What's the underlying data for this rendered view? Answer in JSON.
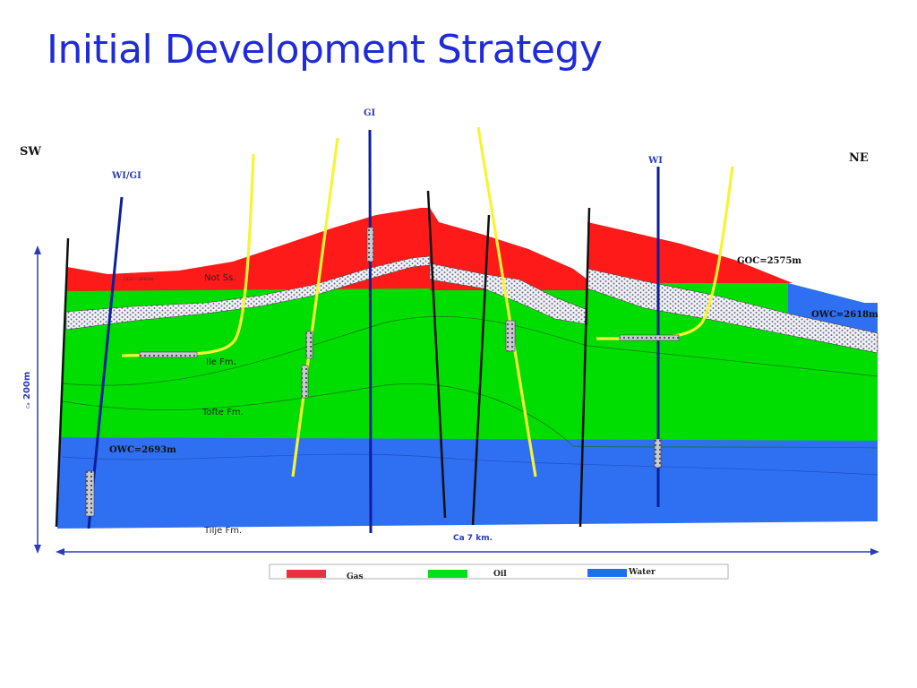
{
  "title": "Initial Development Strategy",
  "directions": {
    "left": "SW",
    "right": "NE"
  },
  "wells": [
    {
      "label": "WI/GI"
    },
    {
      "label": "GI"
    },
    {
      "label": "WI"
    }
  ],
  "contacts": {
    "goc_right": "GOC=2575m",
    "goc_left": "GOC=2693m",
    "owc_right": "OWC=2618m",
    "owc_left": "OWC=2693m"
  },
  "formations": {
    "not": "Not Ss.",
    "ile": "Ile Fm.",
    "tofte": "Tofte Fm.",
    "tilje": "Tilje Fm."
  },
  "scale": {
    "vertical_prefix": "Ca",
    "vertical": "200m",
    "horizontal": "Ca 7 km."
  },
  "legend": [
    {
      "label": "Gas",
      "color": "#e8323f"
    },
    {
      "label": "Oil",
      "color": "#00e01a"
    },
    {
      "label": "Water",
      "color": "#1e6ff0"
    }
  ],
  "colors": {
    "gas": "#ff1a1a",
    "oil": "#00dd00",
    "water": "#2f6ff2",
    "well_blue": "#0a1f9a",
    "horizontal_well": "#f5f536",
    "title": "#1f2bd9"
  }
}
